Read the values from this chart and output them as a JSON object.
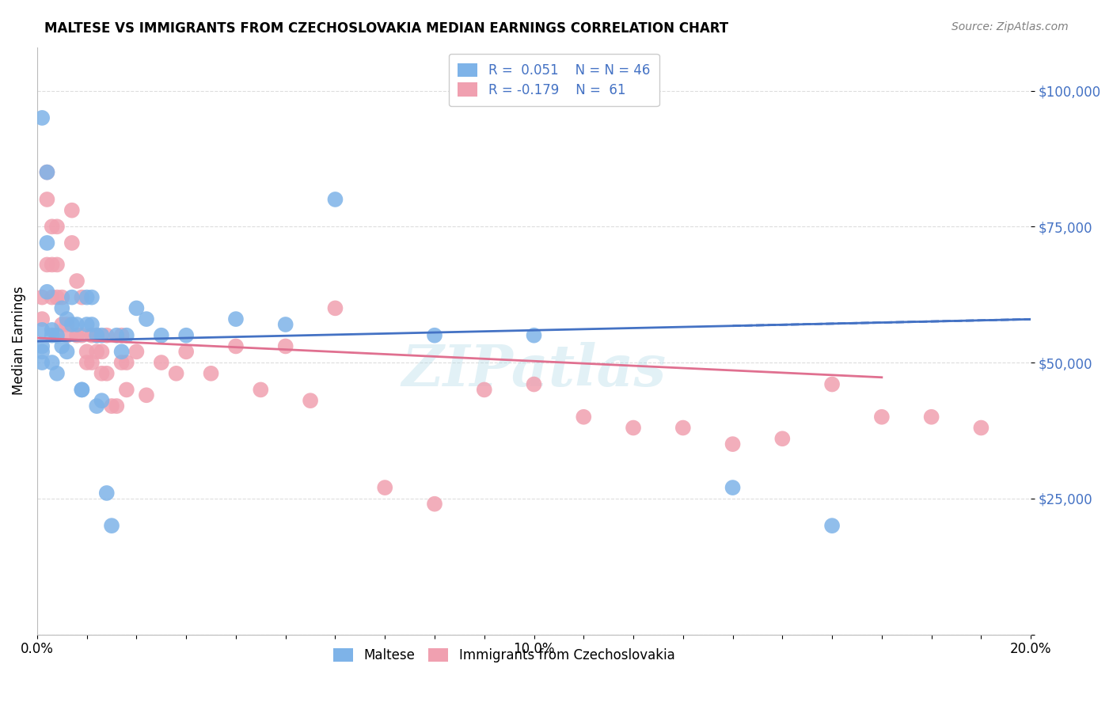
{
  "title": "MALTESE VS IMMIGRANTS FROM CZECHOSLOVAKIA MEDIAN EARNINGS CORRELATION CHART",
  "source": "Source: ZipAtlas.com",
  "xlabel": "",
  "ylabel": "Median Earnings",
  "xmin": 0.0,
  "xmax": 0.2,
  "ymin": 0,
  "ymax": 108000,
  "yticks": [
    0,
    25000,
    50000,
    75000,
    100000
  ],
  "ytick_labels": [
    "",
    "$25,000",
    "$50,000",
    "$75,000",
    "$100,000"
  ],
  "xtick_labels": [
    "0.0%",
    "",
    "",
    "",
    "",
    "",
    "",
    "",
    "",
    "",
    "10.0%",
    "",
    "",
    "",
    "",
    "",
    "",
    "",
    "",
    "",
    "20.0%"
  ],
  "legend_R1": "R =  0.051",
  "legend_N1": "N = 46",
  "legend_R2": "R = -0.179",
  "legend_N2": " 61",
  "blue_color": "#7EB3E8",
  "pink_color": "#F0A0B0",
  "blue_line_color": "#4472C4",
  "pink_line_color": "#E07090",
  "legend_text_color": "#4472C4",
  "maltese_x": [
    0.001,
    0.001,
    0.001,
    0.001,
    0.001,
    0.002,
    0.002,
    0.002,
    0.003,
    0.003,
    0.003,
    0.004,
    0.004,
    0.005,
    0.005,
    0.006,
    0.006,
    0.007,
    0.007,
    0.008,
    0.009,
    0.009,
    0.01,
    0.01,
    0.011,
    0.011,
    0.012,
    0.012,
    0.013,
    0.013,
    0.014,
    0.015,
    0.016,
    0.017,
    0.018,
    0.02,
    0.022,
    0.025,
    0.03,
    0.04,
    0.05,
    0.06,
    0.08,
    0.1,
    0.14,
    0.16
  ],
  "maltese_y": [
    95000,
    52000,
    53000,
    56000,
    50000,
    85000,
    72000,
    63000,
    56000,
    55000,
    50000,
    48000,
    55000,
    60000,
    53000,
    58000,
    52000,
    62000,
    57000,
    57000,
    45000,
    45000,
    62000,
    57000,
    62000,
    57000,
    55000,
    42000,
    55000,
    43000,
    26000,
    20000,
    55000,
    52000,
    55000,
    60000,
    58000,
    55000,
    55000,
    58000,
    57000,
    80000,
    55000,
    55000,
    27000,
    20000
  ],
  "czech_x": [
    0.001,
    0.001,
    0.002,
    0.002,
    0.002,
    0.003,
    0.003,
    0.003,
    0.004,
    0.004,
    0.004,
    0.005,
    0.005,
    0.006,
    0.006,
    0.007,
    0.007,
    0.008,
    0.008,
    0.009,
    0.009,
    0.01,
    0.01,
    0.011,
    0.011,
    0.012,
    0.012,
    0.013,
    0.013,
    0.014,
    0.014,
    0.015,
    0.016,
    0.017,
    0.017,
    0.018,
    0.018,
    0.02,
    0.022,
    0.025,
    0.028,
    0.03,
    0.035,
    0.04,
    0.045,
    0.05,
    0.055,
    0.06,
    0.07,
    0.08,
    0.09,
    0.1,
    0.11,
    0.12,
    0.13,
    0.14,
    0.15,
    0.16,
    0.17,
    0.18,
    0.19
  ],
  "czech_y": [
    62000,
    58000,
    85000,
    80000,
    68000,
    75000,
    68000,
    62000,
    75000,
    68000,
    62000,
    62000,
    57000,
    57000,
    55000,
    78000,
    72000,
    65000,
    55000,
    62000,
    55000,
    52000,
    50000,
    55000,
    50000,
    55000,
    52000,
    52000,
    48000,
    55000,
    48000,
    42000,
    42000,
    55000,
    50000,
    50000,
    45000,
    52000,
    44000,
    50000,
    48000,
    52000,
    48000,
    53000,
    45000,
    53000,
    43000,
    60000,
    27000,
    24000,
    45000,
    46000,
    40000,
    38000,
    38000,
    35000,
    36000,
    46000,
    40000,
    40000,
    38000
  ],
  "R1": 0.051,
  "R2": -0.179,
  "background_color": "#ffffff",
  "grid_color": "#DDDDDD",
  "watermark": "ZIPatlas"
}
